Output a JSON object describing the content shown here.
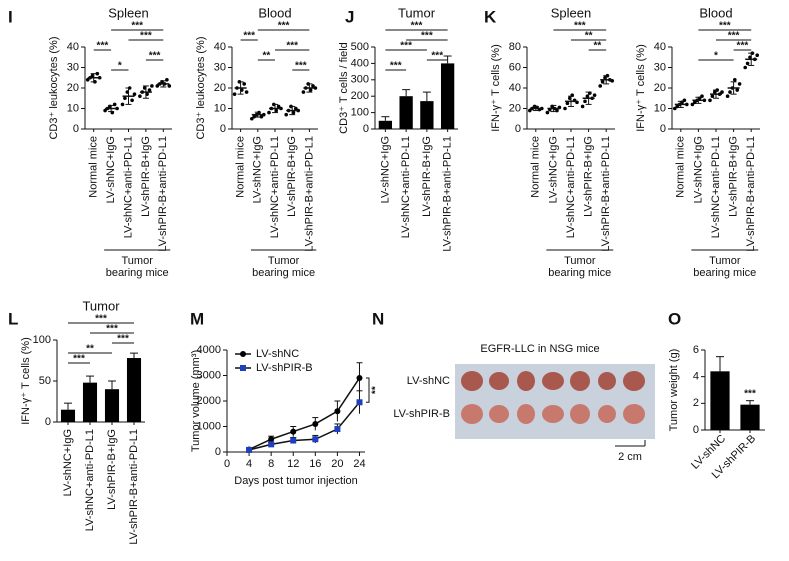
{
  "chart_data": [
    {
      "type": "dot",
      "panel": "I",
      "title": "Spleen",
      "ylabel": "CD3⁺ leukocytes (%)",
      "categories": [
        "Normal mice",
        "LV-shNC+IgG",
        "LV-shNC+anti-PD-L1",
        "LV-shPIR-B+IgG",
        "LV-shPIR-B+anti-PD-L1"
      ],
      "values": [
        25,
        10,
        16,
        18,
        22
      ],
      "errors": [
        2,
        1.5,
        4,
        3,
        1.5
      ],
      "points": [
        [
          24,
          25,
          26,
          23,
          27,
          25
        ],
        [
          9,
          10,
          11,
          8,
          12,
          10
        ],
        [
          12,
          15,
          18,
          20,
          14,
          17
        ],
        [
          16,
          18,
          20,
          17,
          19,
          21
        ],
        [
          21,
          22,
          23,
          22,
          24,
          21
        ]
      ],
      "ylim": [
        0,
        40
      ],
      "yticks": [
        0,
        10,
        20,
        30,
        40
      ],
      "color": "#000000",
      "annotations": [
        {
          "text": "***",
          "from": 1,
          "to": 4
        },
        {
          "text": "***",
          "from": 2,
          "to": 4
        },
        {
          "text": "***",
          "from": 0,
          "to": 1
        },
        {
          "text": "***",
          "from": 3,
          "to": 4
        },
        {
          "text": "*",
          "from": 1,
          "to": 2
        }
      ],
      "group_label": [
        "Tumor",
        "bearing mice"
      ]
    },
    {
      "type": "dot",
      "panel": "",
      "title": "Blood",
      "ylabel": "CD3⁺ leukocytes (%)",
      "categories": [
        "Normal mice",
        "LV-shNC+IgG",
        "LV-shNC+anti-PD-L1",
        "LV-shPIR-B+IgG",
        "LV-shPIR-B+anti-PD-L1"
      ],
      "values": [
        20,
        7,
        10,
        9,
        20
      ],
      "errors": [
        3,
        1.2,
        2,
        2,
        2
      ],
      "points": [
        [
          17,
          20,
          23,
          19,
          22,
          18
        ],
        [
          5,
          6,
          7,
          8,
          6,
          7
        ],
        [
          8,
          10,
          12,
          9,
          11,
          10
        ],
        [
          7,
          9,
          11,
          8,
          10,
          9
        ],
        [
          18,
          20,
          22,
          19,
          21,
          20
        ]
      ],
      "ylim": [
        0,
        40
      ],
      "yticks": [
        0,
        10,
        20,
        30,
        40
      ],
      "color": "#000000",
      "annotations": [
        {
          "text": "***",
          "from": 1,
          "to": 4
        },
        {
          "text": "***",
          "from": 0,
          "to": 1
        },
        {
          "text": "***",
          "from": 2,
          "to": 4
        },
        {
          "text": "**",
          "from": 1,
          "to": 2
        },
        {
          "text": "***",
          "from": 3,
          "to": 4
        }
      ],
      "group_label": [
        "Tumor",
        "bearing mice"
      ]
    },
    {
      "type": "bar",
      "panel": "J",
      "title": "Tumor",
      "ylabel": "CD3⁺ T cells / field",
      "categories": [
        "LV-shNC+IgG",
        "LV-shNC+anti-PD-L1",
        "LV-shPIR-B+IgG",
        "LV-shPIR-B+anti-PD-L1"
      ],
      "values": [
        50,
        200,
        170,
        400
      ],
      "errors": [
        25,
        40,
        55,
        45
      ],
      "ylim": [
        0,
        500
      ],
      "yticks": [
        0,
        100,
        200,
        300,
        400,
        500
      ],
      "color": "#000000",
      "annotations": [
        {
          "text": "***",
          "from": 0,
          "to": 3
        },
        {
          "text": "***",
          "from": 1,
          "to": 3
        },
        {
          "text": "***",
          "from": 0,
          "to": 2
        },
        {
          "text": "***",
          "from": 2,
          "to": 3
        },
        {
          "text": "***",
          "from": 0,
          "to": 1
        }
      ]
    },
    {
      "type": "dot",
      "panel": "K",
      "title": "Spleen",
      "ylabel": "IFN-γ⁺ T cells (%)",
      "categories": [
        "Normal mice",
        "LV-shNC+IgG",
        "LV-shNC+anti-PD-L1",
        "LV-shPIR-B+IgG",
        "LV-shPIR-B+anti-PD-L1"
      ],
      "values": [
        20,
        20,
        27,
        30,
        48
      ],
      "errors": [
        2,
        3,
        5,
        6,
        4
      ],
      "points": [
        [
          18,
          20,
          22,
          21,
          19,
          20
        ],
        [
          16,
          19,
          22,
          20,
          18,
          21
        ],
        [
          20,
          25,
          30,
          33,
          28,
          26
        ],
        [
          22,
          27,
          32,
          35,
          30,
          33
        ],
        [
          42,
          46,
          50,
          52,
          48,
          47
        ]
      ],
      "ylim": [
        0,
        80
      ],
      "yticks": [
        0,
        20,
        40,
        60,
        80
      ],
      "color": "#000000",
      "annotations": [
        {
          "text": "***",
          "from": 1,
          "to": 4
        },
        {
          "text": "**",
          "from": 2,
          "to": 4
        },
        {
          "text": "**",
          "from": 3,
          "to": 4
        }
      ],
      "group_label": [
        "Tumor",
        "bearing mice"
      ]
    },
    {
      "type": "dot",
      "panel": "",
      "title": "Blood",
      "ylabel": "IFN-γ⁺ T cells (%)",
      "categories": [
        "Normal mice",
        "LV-shNC+IgG",
        "LV-shNC+anti-PD-L1",
        "LV-shPIR-B+IgG",
        "LV-shPIR-B+anti-PD-L1"
      ],
      "values": [
        12,
        14,
        17,
        20,
        34
      ],
      "errors": [
        1.5,
        1.5,
        2,
        3,
        3
      ],
      "points": [
        [
          10,
          11,
          12,
          13,
          14,
          12
        ],
        [
          12,
          13,
          14,
          15,
          16,
          14
        ],
        [
          14,
          16,
          18,
          19,
          17,
          18
        ],
        [
          16,
          18,
          20,
          24,
          19,
          22
        ],
        [
          30,
          32,
          35,
          37,
          34,
          36
        ]
      ],
      "ylim": [
        0,
        40
      ],
      "yticks": [
        0,
        10,
        20,
        30,
        40
      ],
      "color": "#000000",
      "annotations": [
        {
          "text": "***",
          "from": 1,
          "to": 4
        },
        {
          "text": "***",
          "from": 2,
          "to": 4
        },
        {
          "text": "***",
          "from": 3,
          "to": 4
        },
        {
          "text": "*",
          "from": 1,
          "to": 3
        }
      ],
      "group_label": [
        "Tumor",
        "bearing mice"
      ]
    },
    {
      "type": "bar",
      "panel": "L",
      "title": "Tumor",
      "ylabel": "IFN-γ⁺ T cells (%)",
      "categories": [
        "LV-shNC+IgG",
        "LV-shNC+anti-PD-L1",
        "LV-shPIR-B+IgG",
        "LV-shPIR-B+anti-PD-L1"
      ],
      "values": [
        15,
        48,
        40,
        78
      ],
      "errors": [
        8,
        8,
        10,
        6
      ],
      "ylim": [
        0,
        100
      ],
      "yticks": [
        0,
        50,
        100
      ],
      "color": "#000000",
      "annotations": [
        {
          "text": "***",
          "from": 0,
          "to": 3
        },
        {
          "text": "***",
          "from": 1,
          "to": 3
        },
        {
          "text": "***",
          "from": 2,
          "to": 3
        },
        {
          "text": "**",
          "from": 0,
          "to": 2
        },
        {
          "text": "***",
          "from": 0,
          "to": 1
        }
      ]
    },
    {
      "type": "line",
      "panel": "M",
      "ylabel": "Tumor volume (mm³)",
      "xlabel": "Days post tumor injection",
      "x": [
        4,
        8,
        12,
        16,
        20,
        24
      ],
      "series": [
        {
          "name": "LV-shNC",
          "color": "#000000",
          "values": [
            100,
            500,
            800,
            1100,
            1600,
            2900
          ],
          "errors": [
            50,
            120,
            200,
            250,
            400,
            600
          ]
        },
        {
          "name": "LV-shPIR-B",
          "color": "#1f3fbf",
          "values": [
            80,
            300,
            450,
            500,
            900,
            1950
          ],
          "errors": [
            40,
            80,
            120,
            150,
            200,
            450
          ]
        }
      ],
      "xlim": [
        0,
        25
      ],
      "xticks": [
        0,
        4,
        8,
        12,
        16,
        20,
        24
      ],
      "ylim": [
        0,
        4000
      ],
      "yticks": [
        0,
        1000,
        2000,
        3000,
        4000
      ],
      "annotations": [
        {
          "text": "**"
        }
      ]
    },
    {
      "type": "bar",
      "panel": "O",
      "ylabel": "Tumor weight (g)",
      "categories": [
        "LV-shNC",
        "LV-shPIR-B"
      ],
      "values": [
        4.4,
        1.9
      ],
      "errors": [
        1.1,
        0.3
      ],
      "ylim": [
        0,
        6
      ],
      "yticks": [
        0,
        2,
        4,
        6
      ],
      "color": "#000000",
      "annotations": [
        {
          "text": "***"
        }
      ]
    }
  ],
  "photo": {
    "panel": "N",
    "title": "EGFR-LLC in NSG mice",
    "rows": [
      "LV-shNC",
      "LV-shPIR-B"
    ],
    "scale_bar": "2 cm"
  }
}
